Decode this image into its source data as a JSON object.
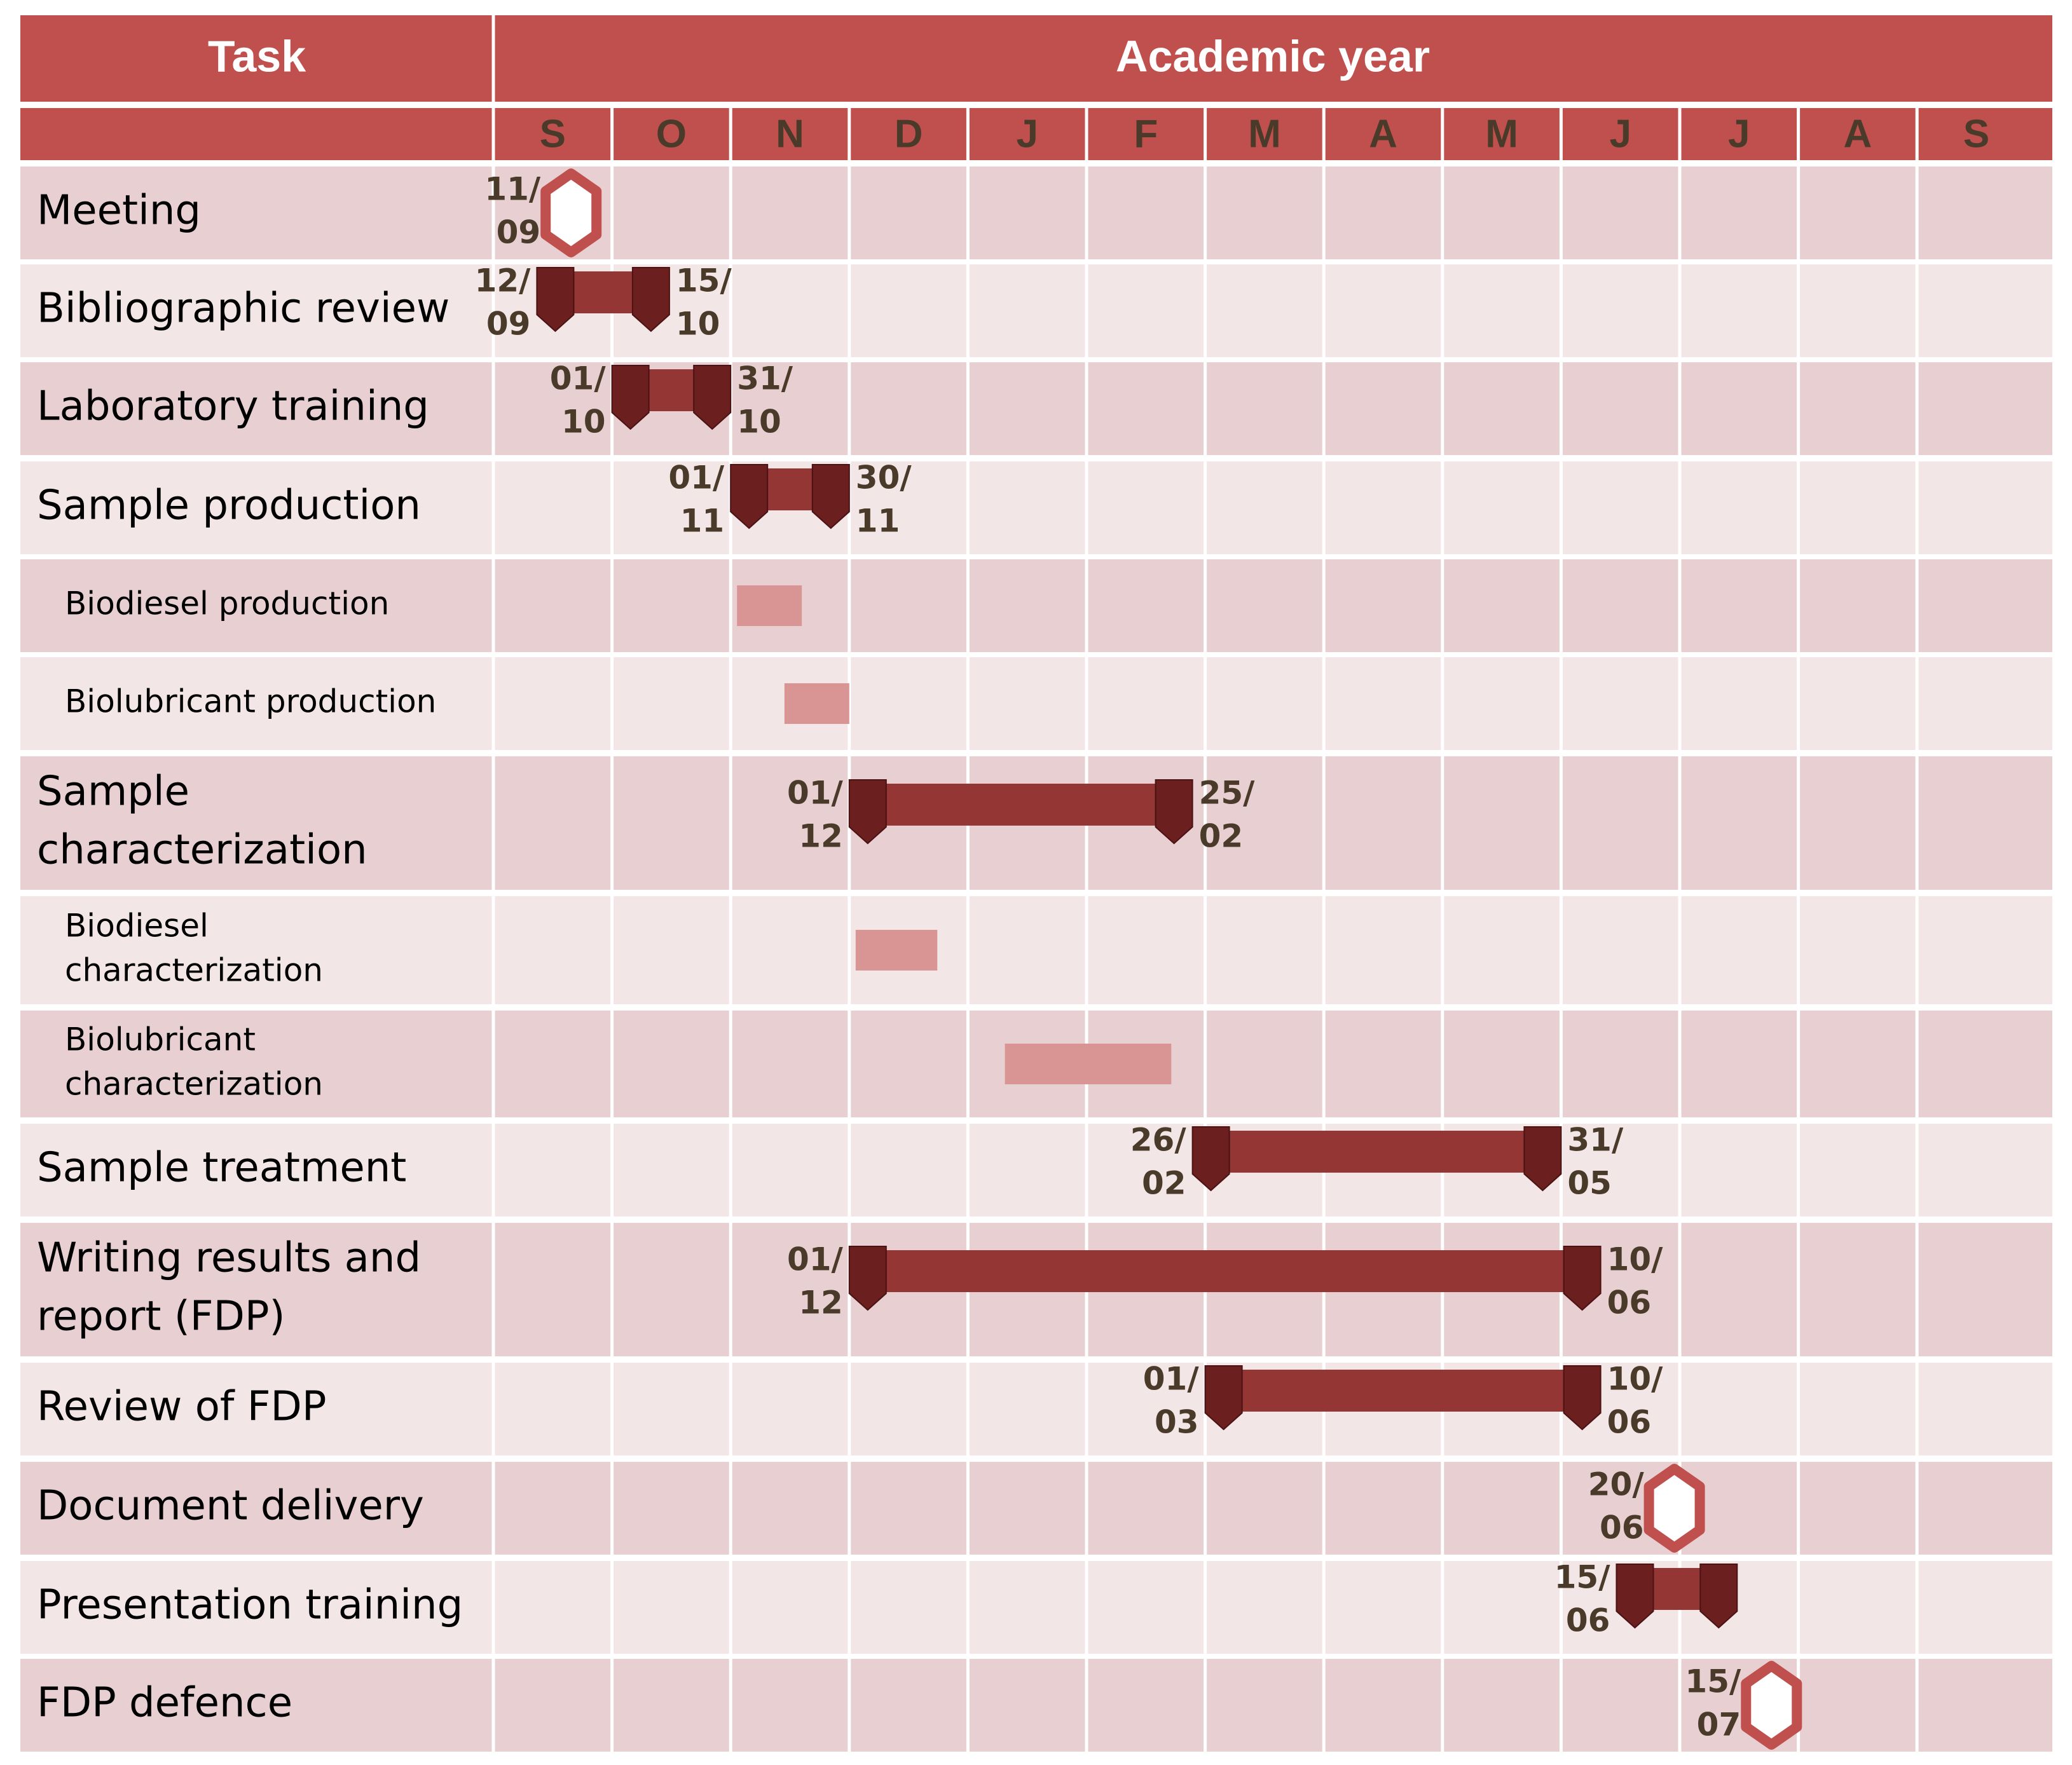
{
  "chart_data": {
    "type": "gantt",
    "header": {
      "task": "Task",
      "period": "Academic year"
    },
    "months": [
      "S",
      "O",
      "N",
      "D",
      "J",
      "F",
      "M",
      "A",
      "M",
      "J",
      "J",
      "A",
      "S"
    ],
    "colors": {
      "header": "#c0504d",
      "row_dark": "#e8cfd1",
      "row_light": "#f3e6e6",
      "bar": "#943634",
      "cap": "#6b1f1e",
      "subtask": "#d99594",
      "milestone": "#c0504d"
    },
    "tasks": [
      {
        "label": "Meeting",
        "kind": "milestone",
        "start": "11/09",
        "start_lines": [
          "11/",
          "09"
        ]
      },
      {
        "label": "Bibliographic review",
        "kind": "bar",
        "start": "12/09",
        "end": "15/10",
        "start_lines": [
          "12/",
          "09"
        ],
        "end_lines": [
          "15/",
          "10"
        ]
      },
      {
        "label": "Laboratory training",
        "kind": "bar",
        "start": "01/10",
        "end": "31/10",
        "start_lines": [
          "01/",
          "10"
        ],
        "end_lines": [
          "31/",
          "10"
        ]
      },
      {
        "label": "Sample production",
        "kind": "bar",
        "start": "01/11",
        "end": "30/11",
        "start_lines": [
          "01/",
          "11"
        ],
        "end_lines": [
          "30/",
          "11"
        ]
      },
      {
        "label": "Biodiesel production",
        "kind": "sub",
        "start": "01/11",
        "end": "18/11"
      },
      {
        "label": "Biolubricant production",
        "kind": "sub",
        "start": "13/11",
        "end": "30/11"
      },
      {
        "label": "Sample characterization",
        "lines": [
          "Sample",
          "characterization"
        ],
        "kind": "bar",
        "start": "01/12",
        "end": "25/02",
        "start_lines": [
          "01/",
          "12"
        ],
        "end_lines": [
          "25/",
          "02"
        ]
      },
      {
        "label": "Biodiesel characterization",
        "lines": [
          "Biodiesel",
          "characterization"
        ],
        "kind": "sub",
        "start": "01/12",
        "end": "23/12"
      },
      {
        "label": "Biolubricant characterization",
        "lines": [
          "Biolubricant",
          "characterization"
        ],
        "kind": "sub",
        "start": "09/01",
        "end": "20/02"
      },
      {
        "label": "Sample treatment",
        "kind": "bar",
        "start": "26/02",
        "end": "31/05",
        "start_lines": [
          "26/",
          "02"
        ],
        "end_lines": [
          "31/",
          "05"
        ]
      },
      {
        "label": "Writing results and report (FDP)",
        "lines": [
          "Writing results and",
          "report (FDP)"
        ],
        "kind": "bar",
        "start": "01/12",
        "end": "10/06",
        "start_lines": [
          "01/",
          "12"
        ],
        "end_lines": [
          "10/",
          "06"
        ]
      },
      {
        "label": "Review of FDP",
        "kind": "bar",
        "start": "01/03",
        "end": "10/06",
        "start_lines": [
          "01/",
          "03"
        ],
        "end_lines": [
          "10/",
          "06"
        ]
      },
      {
        "label": "Document delivery",
        "kind": "milestone",
        "start": "20/06",
        "start_lines": [
          "20/",
          "06"
        ]
      },
      {
        "label": "Presentation training",
        "kind": "bar",
        "start": "15/06",
        "end": "15/07",
        "start_lines": [
          "15/",
          "06"
        ],
        "end_lines": []
      },
      {
        "label": "FDP defence",
        "kind": "milestone",
        "start": "15/07",
        "start_lines": [
          "15/",
          "07"
        ]
      }
    ]
  }
}
